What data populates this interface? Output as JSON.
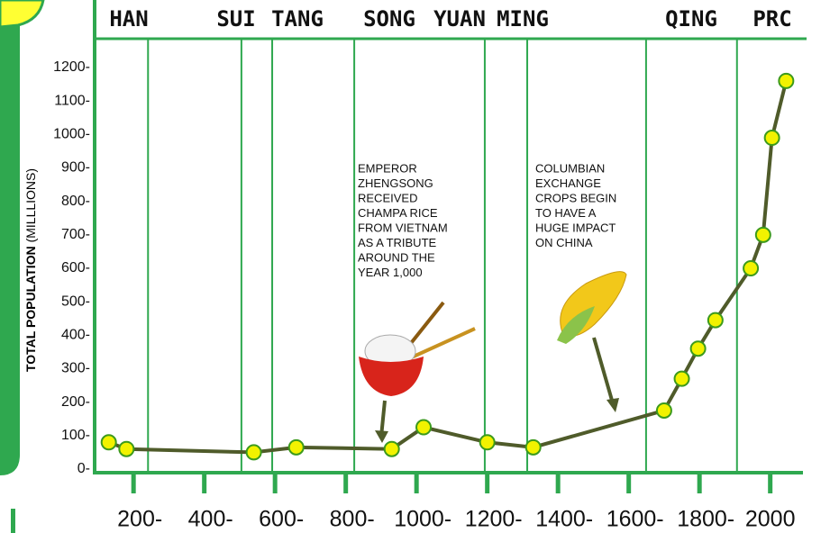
{
  "chart_data": {
    "type": "line",
    "y_label": "TOTAL POPULATION",
    "y_label_unit": "(MILLLIONS)",
    "x": [
      130,
      180,
      540,
      660,
      930,
      1020,
      1200,
      1330,
      1700,
      1750,
      1796,
      1845,
      1945,
      1980,
      2005,
      2045
    ],
    "values": [
      80,
      60,
      50,
      65,
      60,
      125,
      80,
      65,
      175,
      270,
      360,
      445,
      600,
      700,
      990,
      1160
    ],
    "color": "#4f5b2a",
    "marker_color": "#f2f200",
    "xlim": [
      90,
      2090
    ],
    "ylim": [
      -12,
      1208
    ],
    "xticks": [
      {
        "value": 200,
        "label": "200-"
      },
      {
        "value": 400,
        "label": "400-"
      },
      {
        "value": 600,
        "label": "600-"
      },
      {
        "value": 800,
        "label": "800-"
      },
      {
        "value": 1000,
        "label": "1000-"
      },
      {
        "value": 1200,
        "label": "1200-"
      },
      {
        "value": 1400,
        "label": "1400-"
      },
      {
        "value": 1600,
        "label": "1600-"
      },
      {
        "value": 1800,
        "label": "1800-"
      },
      2000
    ],
    "yticks": [
      {
        "value": 0,
        "label": "0-"
      },
      {
        "value": 100,
        "label": "100-"
      },
      {
        "value": 200,
        "label": "200-"
      },
      {
        "value": 300,
        "label": "300-"
      },
      {
        "value": 400,
        "label": "400-"
      },
      {
        "value": 500,
        "label": "500-"
      },
      {
        "value": 600,
        "label": "600-"
      },
      {
        "value": 700,
        "label": "700-"
      },
      {
        "value": 800,
        "label": "800-"
      },
      {
        "value": 900,
        "label": "900-"
      },
      {
        "value": 1000,
        "label": "1000-"
      },
      {
        "value": 1100,
        "label": "1100-"
      },
      {
        "value": 1200,
        "label": "1200-"
      }
    ],
    "dynasties": [
      "HAN",
      "SUI",
      "TANG",
      "SONG",
      "YUAN",
      "MING",
      "QING",
      "PRC"
    ],
    "dynasty_boundaries": [
      241,
      505,
      592,
      824,
      1193,
      1313,
      1649,
      1906
    ],
    "annotations": [
      {
        "lines": [
          "EMPEROR",
          "ZHENGSONG",
          "RECEIVED",
          "CHAMPA RICE",
          "FROM VIETNAM",
          "AS A TRIBUTE",
          "AROUND THE",
          "YEAR 1,000"
        ]
      },
      {
        "lines": [
          "COLUMBIAN",
          "EXCHANGE",
          "CROPS BEGIN",
          "TO HAVE A",
          "HUGE IMPACT",
          "ON CHINA"
        ]
      }
    ]
  }
}
